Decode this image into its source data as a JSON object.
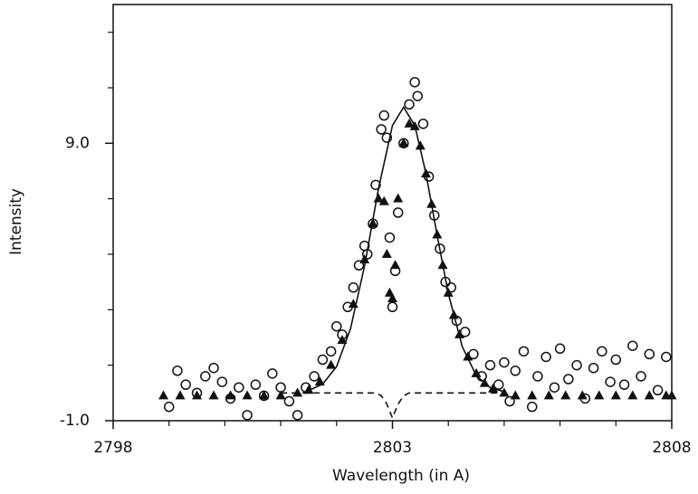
{
  "chart_data": {
    "type": "scatter",
    "xlabel": "Wavelength (in A)",
    "ylabel": "Intensity",
    "xlim": [
      2798,
      2808
    ],
    "ylim": [
      -1,
      14
    ],
    "xticks": [
      2798,
      2803,
      2808
    ],
    "xminorticks": [
      2799,
      2800,
      2801,
      2802,
      2804,
      2805,
      2806,
      2807
    ],
    "yticks": [
      {
        "value": -1,
        "label": "-1.0"
      },
      {
        "value": 9,
        "label": "9.0"
      }
    ],
    "yminorticks": [
      1,
      3,
      5,
      7,
      11,
      13
    ],
    "series": [
      {
        "marker": "circle-open",
        "color": "#111111",
        "x": [
          2799.0,
          2799.15,
          2799.3,
          2799.5,
          2799.65,
          2799.8,
          2799.95,
          2800.1,
          2800.25,
          2800.4,
          2800.55,
          2800.7,
          2800.85,
          2801.0,
          2801.15,
          2801.3,
          2801.45,
          2801.6,
          2801.75,
          2801.9,
          2802.0,
          2802.1,
          2802.2,
          2802.3,
          2802.4,
          2802.5,
          2802.55,
          2802.65,
          2802.7,
          2802.8,
          2802.85,
          2802.9,
          2802.95,
          2803.0,
          2803.05,
          2803.1,
          2803.2,
          2803.3,
          2803.4,
          2803.45,
          2803.55,
          2803.65,
          2803.75,
          2803.85,
          2803.95,
          2804.05,
          2804.15,
          2804.3,
          2804.45,
          2804.6,
          2804.75,
          2804.9,
          2805.0,
          2805.1,
          2805.2,
          2805.35,
          2805.5,
          2805.6,
          2805.75,
          2805.9,
          2806.0,
          2806.15,
          2806.3,
          2806.45,
          2806.6,
          2806.75,
          2806.9,
          2807.0,
          2807.15,
          2807.3,
          2807.45,
          2807.6,
          2807.75,
          2807.9
        ],
        "values": [
          -0.5,
          0.8,
          0.3,
          0.0,
          0.6,
          0.9,
          0.4,
          -0.2,
          0.2,
          -0.8,
          0.3,
          -0.1,
          0.7,
          0.2,
          -0.3,
          -0.8,
          0.2,
          0.6,
          1.2,
          1.5,
          2.4,
          2.1,
          3.1,
          3.8,
          4.6,
          5.3,
          5.0,
          6.1,
          7.5,
          9.5,
          10.0,
          9.2,
          5.6,
          3.1,
          4.4,
          6.5,
          9.0,
          10.4,
          11.2,
          10.7,
          9.7,
          7.8,
          6.4,
          5.2,
          4.0,
          3.8,
          2.6,
          2.2,
          1.4,
          0.6,
          1.0,
          0.3,
          1.1,
          -0.3,
          0.8,
          1.5,
          -0.5,
          0.6,
          1.3,
          0.2,
          1.6,
          0.5,
          1.0,
          -0.2,
          0.9,
          1.5,
          0.4,
          1.2,
          0.3,
          1.7,
          0.6,
          1.4,
          0.1,
          1.3
        ]
      },
      {
        "marker": "triangle-filled",
        "color": "#111111",
        "x": [
          2798.9,
          2799.2,
          2799.5,
          2799.8,
          2800.1,
          2800.4,
          2800.7,
          2801.0,
          2801.3,
          2801.5,
          2801.7,
          2801.9,
          2802.1,
          2802.3,
          2802.5,
          2802.65,
          2802.75,
          2802.85,
          2802.9,
          2802.95,
          2803.0,
          2803.05,
          2803.1,
          2803.2,
          2803.3,
          2803.4,
          2803.5,
          2803.6,
          2803.7,
          2803.8,
          2803.9,
          2804.0,
          2804.1,
          2804.2,
          2804.35,
          2804.5,
          2804.65,
          2804.8,
          2805.0,
          2805.2,
          2805.5,
          2805.8,
          2806.1,
          2806.4,
          2806.7,
          2807.0,
          2807.3,
          2807.6,
          2807.9,
          2808.0
        ],
        "values": [
          -0.1,
          -0.1,
          -0.1,
          -0.1,
          -0.1,
          -0.1,
          -0.1,
          -0.1,
          0.0,
          0.1,
          0.4,
          1.0,
          1.9,
          3.2,
          4.8,
          6.1,
          7.0,
          6.9,
          5.0,
          3.6,
          3.4,
          4.6,
          7.0,
          9.0,
          9.7,
          9.6,
          8.9,
          7.9,
          6.8,
          5.7,
          4.6,
          3.6,
          2.8,
          2.1,
          1.3,
          0.7,
          0.35,
          0.15,
          0.0,
          -0.1,
          -0.1,
          -0.1,
          -0.1,
          -0.1,
          -0.1,
          -0.1,
          -0.1,
          -0.1,
          -0.1,
          -0.1
        ]
      },
      {
        "marker": "line-solid",
        "color": "#111111",
        "x": [
          2801.5,
          2801.75,
          2802,
          2802.25,
          2802.5,
          2802.75,
          2803,
          2803.2,
          2803.4,
          2803.6,
          2803.8,
          2804,
          2804.25,
          2804.5,
          2804.75,
          2805
        ],
        "values": [
          0.09,
          0.32,
          0.95,
          2.32,
          4.58,
          7.37,
          9.64,
          10.3,
          9.64,
          7.91,
          5.68,
          3.58,
          1.67,
          0.63,
          0.19,
          0.05
        ]
      },
      {
        "marker": "line-dashed",
        "color": "#111111",
        "x": [
          2801.0,
          2802.7,
          2802.8,
          2802.9,
          2803.0,
          2803.1,
          2803.2,
          2803.3,
          2805.0
        ],
        "values": [
          0,
          0,
          -0.1,
          -0.4,
          -0.9,
          -0.4,
          -0.1,
          0,
          0
        ]
      }
    ]
  }
}
